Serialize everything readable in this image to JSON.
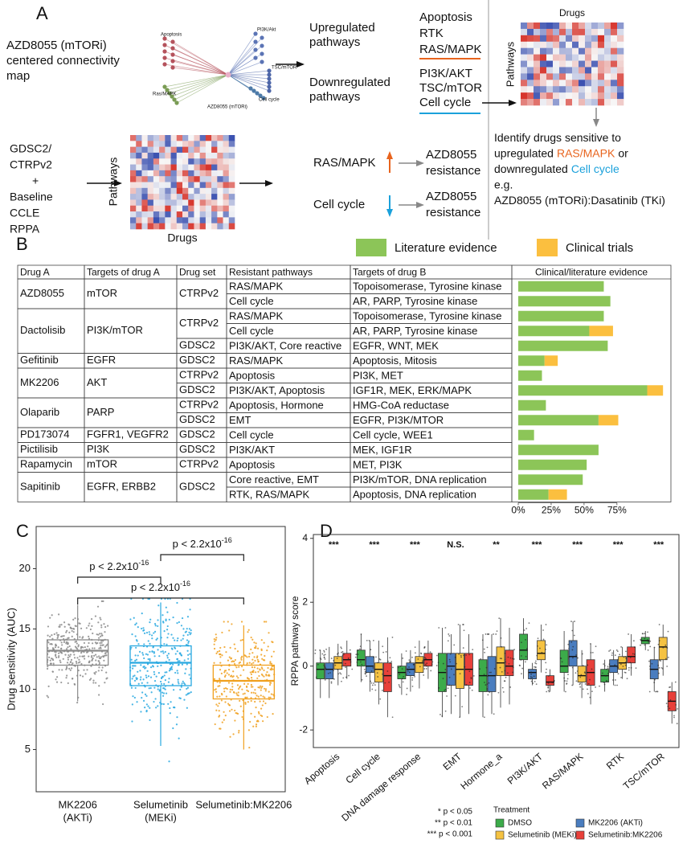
{
  "labels": [
    "A",
    "B",
    "C",
    "D"
  ],
  "panel_a": {
    "map_text": [
      "AZD8055 (mTORi)",
      "centered connectivity",
      "map"
    ],
    "network_labels": [
      "Apoptosis",
      "PI3K/Akt",
      "TSC/mTOR",
      "Ras/MAPK",
      "Cell cycle",
      "AZD8055 (mTORi)"
    ],
    "up_title": [
      "Upregulated",
      "pathways"
    ],
    "up_pathways": [
      "Apoptosis",
      "RTK",
      "RAS/MAPK"
    ],
    "down_title": [
      "Downregulated",
      "pathways"
    ],
    "down_pathways": [
      "PI3K/AKT",
      "TSC/mTOR",
      "Cell cycle"
    ],
    "up_color": "#e8641e",
    "down_color": "#1ba1db",
    "heatmap_top": {
      "x_label": "Drugs",
      "y_label": "Pathways"
    },
    "inputs": [
      "GDSC2/",
      "CTRPv2",
      "+",
      "Baseline",
      "CCLE",
      "RPPA"
    ],
    "heatmap_bottom": {
      "x_label": "Drugs",
      "y_label": "Pathways"
    },
    "outcomes": [
      {
        "pathway": "RAS/MAPK",
        "result": [
          "AZD8055",
          "resistance"
        ]
      },
      {
        "pathway": "Cell cycle",
        "result": [
          "AZD8055",
          "resistance"
        ]
      }
    ],
    "identify": [
      [
        "Identify drugs sensitive to"
      ],
      [
        "upregulated",
        "RAS/MAPK",
        "or"
      ],
      [
        "downregulated",
        "Cell cycle"
      ],
      [
        "e.g."
      ],
      [
        "AZD8055 (mTORi):Dasatinib (TKi)"
      ]
    ]
  },
  "table_b": {
    "headers": [
      "Drug A",
      "Targets of drug A",
      "Drug set",
      "Resistant pathways",
      "Targets of drug B"
    ],
    "drug_color": "#7b4f9e",
    "groups": [
      {
        "drug": "AZD8055",
        "targets": "mTOR",
        "sets": [
          {
            "set": "CTRPv2",
            "rows": [
              {
                "pathway": "RAS/MAPK",
                "color": "#e24a1f",
                "targets_b": "Topoisomerase, Tyrosine kinase"
              },
              {
                "pathway": "Cell cycle",
                "color": "#2aa7de",
                "targets_b": "AR, PARP, Tyrosine kinase"
              }
            ]
          }
        ]
      },
      {
        "drug": "Dactolisib",
        "targets": "PI3K/mTOR",
        "sets": [
          {
            "set": "CTRPv2",
            "rows": [
              {
                "pathway": "RAS/MAPK",
                "color": "#e24a1f",
                "targets_b": "Topoisomerase, Tyrosine kinase"
              },
              {
                "pathway": "Cell cycle",
                "color": "#2aa7de",
                "targets_b": "AR, PARP, Tyrosine kinase"
              }
            ]
          },
          {
            "set": "GDSC2",
            "rows": [
              {
                "pathway": "PI3K/AKT, Core reactive",
                "color": "#2aa7de",
                "targets_b": "EGFR, WNT, MEK"
              }
            ]
          }
        ]
      },
      {
        "drug": "Gefitinib",
        "targets": "EGFR",
        "sets": [
          {
            "set": "GDSC2",
            "rows": [
              {
                "pathway": "RAS/MAPK",
                "color": "#2aa7de",
                "targets_b": "Apoptosis, Mitosis"
              }
            ]
          }
        ]
      },
      {
        "drug": "MK2206",
        "targets": "AKT",
        "sets": [
          {
            "set": "CTRPv2",
            "rows": [
              {
                "pathway": "Apoptosis",
                "color": "#2aa7de",
                "targets_b": "PI3K, MET"
              }
            ]
          },
          {
            "set": "GDSC2",
            "rows": [
              {
                "pathway": "PI3K/AKT, Apoptosis",
                "color": "#2aa7de",
                "targets_b": "IGF1R, MEK, ERK/MAPK"
              }
            ]
          }
        ]
      },
      {
        "drug": "Olaparib",
        "targets": "PARP",
        "sets": [
          {
            "set": "CTRPv2",
            "rows": [
              {
                "pathway": "Apoptosis, Hormone",
                "color": "#2aa7de",
                "targets_b": "HMG-CoA reductase"
              }
            ]
          },
          {
            "set": "GDSC2",
            "rows": [
              {
                "pathway": "EMT",
                "color": "#2aa7de",
                "targets_b": "EGFR, PI3K/MTOR"
              }
            ]
          }
        ]
      },
      {
        "drug": "PD173074",
        "targets": "FGFR1, VEGFR2",
        "sets": [
          {
            "set": "GDSC2",
            "rows": [
              {
                "pathway": "Cell cycle",
                "color": "#e24a1f",
                "targets_b": "Cell cycle, WEE1"
              }
            ]
          }
        ]
      },
      {
        "drug": "Pictilisib",
        "targets": "PI3K",
        "sets": [
          {
            "set": "GDSC2",
            "rows": [
              {
                "pathway": "PI3K/AKT",
                "color": "#2aa7de",
                "targets_b": "MEK, IGF1R"
              }
            ]
          }
        ]
      },
      {
        "drug": "Rapamycin",
        "targets": "mTOR",
        "sets": [
          {
            "set": "CTRPv2",
            "rows": [
              {
                "pathway": "Apoptosis",
                "color": "#2aa7de",
                "targets_b": "MET, PI3K"
              }
            ]
          }
        ]
      },
      {
        "drug": "Sapitinib",
        "targets": "EGFR, ERBB2",
        "sets": [
          {
            "set": "GDSC2",
            "rows": [
              {
                "pathway": "Core reactive, EMT",
                "color": "#e24a1f",
                "targets_b": "PI3K/mTOR, DNA replication"
              },
              {
                "pathway": "RTK, RAS/MAPK",
                "color": "#2aa7de",
                "targets_b": "Apoptosis, DNA replication"
              }
            ]
          }
        ]
      }
    ]
  },
  "chart_data": [
    {
      "type": "bar",
      "orientation": "horizontal",
      "stacked": true,
      "title": "Clinical/literature evidence",
      "series": [
        {
          "name": "Literature evidence",
          "color": "#8cc558",
          "values": [
            65,
            70,
            65,
            54,
            68,
            20,
            18,
            98,
            21,
            61,
            12,
            61,
            52,
            49,
            23
          ]
        },
        {
          "name": "Clinical trials",
          "color": "#fbbf3f",
          "values": [
            0,
            0,
            0,
            18,
            0,
            10,
            0,
            12,
            0,
            15,
            0,
            0,
            0,
            0,
            14
          ]
        }
      ],
      "xlim": [
        0,
        116
      ],
      "xticks": [
        {
          "value": 0,
          "label": "0%"
        },
        {
          "value": 25,
          "label": "25%"
        },
        {
          "value": 50,
          "label": "50%"
        },
        {
          "value": 75,
          "label": "75%"
        }
      ]
    },
    {
      "type": "box",
      "y_label": "Drug sensitivity (AUC)",
      "categories": [
        [
          "MK2206",
          "(AKTi)"
        ],
        [
          "Selumetinib",
          "(MEKi)"
        ],
        [
          "Selumetinib:MK2206"
        ]
      ],
      "colors": [
        "#8a8a8a",
        "#27a8e0",
        "#f0a01e"
      ],
      "boxes": [
        {
          "low": 9,
          "q1": 12,
          "median": 13.2,
          "q3": 14.1,
          "high": 17
        },
        {
          "low": 5.3,
          "q1": 10.3,
          "median": 12.2,
          "q3": 13.6,
          "high": 17.2
        },
        {
          "low": 5,
          "q1": 9.2,
          "median": 10.7,
          "q3": 12,
          "high": 15.3
        }
      ],
      "comparisons": [
        {
          "groups": [
            0,
            1
          ],
          "text": "p < 2.2x10",
          "exponent": "-16"
        },
        {
          "groups": [
            1,
            2
          ],
          "text": "p < 2.2x10",
          "exponent": "-16"
        },
        {
          "groups": [
            0,
            2
          ],
          "text": "p < 2.2x10",
          "exponent": "-16"
        }
      ],
      "ylim": [
        1.5,
        23.5
      ],
      "yticks": [
        5,
        10,
        15,
        20
      ]
    },
    {
      "type": "box",
      "y_label": "RPPA pathway score",
      "categories": [
        "Apoptosis",
        "Cell cycle",
        "DNA damage response",
        "EMT",
        "Hormone_a",
        "PI3K/AKT",
        "RAS/MAPK",
        "RTK",
        "TSC/mTOR"
      ],
      "significance": [
        "***",
        "***",
        "***",
        "N.S.",
        "**",
        "***",
        "***",
        "***",
        "***"
      ],
      "significance_key": [
        "* p < 0.05",
        "** p < 0.01",
        "*** p < 0.001"
      ],
      "legend_title": "Treatment",
      "series": [
        {
          "name": "DMSO",
          "color": "#3cab4a",
          "boxes": [
            {
              "low": -1,
              "q1": -0.4,
              "median": -0.1,
              "q3": 0.1,
              "high": 0.5
            },
            {
              "low": -0.5,
              "q1": 0,
              "median": 0.2,
              "q3": 0.5,
              "high": 1
            },
            {
              "low": -0.9,
              "q1": -0.4,
              "median": -0.2,
              "q3": 0,
              "high": 0.4
            },
            {
              "low": -1.6,
              "q1": -0.8,
              "median": -0.2,
              "q3": 0.4,
              "high": 1.2
            },
            {
              "low": -1.6,
              "q1": -0.8,
              "median": -0.3,
              "q3": 0.2,
              "high": 1
            },
            {
              "low": -0.4,
              "q1": 0.2,
              "median": 0.5,
              "q3": 1,
              "high": 1.5
            },
            {
              "low": -0.8,
              "q1": -0.2,
              "median": 0,
              "q3": 0.5,
              "high": 1.1
            },
            {
              "low": -0.8,
              "q1": -0.5,
              "median": -0.3,
              "q3": -0.1,
              "high": 0.2
            },
            {
              "low": 0.5,
              "q1": 0.7,
              "median": 0.8,
              "q3": 0.9,
              "high": 1.1
            }
          ]
        },
        {
          "name": "MK2206 (AKTi)",
          "color": "#4a7dbf",
          "boxes": [
            {
              "low": -1,
              "q1": -0.4,
              "median": -0.1,
              "q3": 0.1,
              "high": 0.6
            },
            {
              "low": -0.8,
              "q1": -0.2,
              "median": 0,
              "q3": 0.3,
              "high": 0.8
            },
            {
              "low": -0.8,
              "q1": -0.3,
              "median": -0.1,
              "q3": 0.1,
              "high": 0.5
            },
            {
              "low": -1.5,
              "q1": -0.6,
              "median": 0,
              "q3": 0.4,
              "high": 1
            },
            {
              "low": -1.5,
              "q1": -0.8,
              "median": -0.3,
              "q3": 0.3,
              "high": 1
            },
            {
              "low": -0.6,
              "q1": -0.4,
              "median": -0.2,
              "q3": -0.1,
              "high": 0.1
            },
            {
              "low": -0.6,
              "q1": 0,
              "median": 0.3,
              "q3": 0.8,
              "high": 1.4
            },
            {
              "low": -0.6,
              "q1": -0.2,
              "median": 0,
              "q3": 0.2,
              "high": 0.5
            },
            {
              "low": -0.8,
              "q1": -0.4,
              "median": -0.1,
              "q3": 0.2,
              "high": 0.6
            }
          ]
        },
        {
          "name": "Selumetinib (MEKi)",
          "color": "#f5c242",
          "boxes": [
            {
              "low": -0.6,
              "q1": -0.1,
              "median": 0.1,
              "q3": 0.3,
              "high": 0.7
            },
            {
              "low": -1.2,
              "q1": -0.5,
              "median": -0.1,
              "q3": 0.1,
              "high": 0.8
            },
            {
              "low": -0.7,
              "q1": -0.2,
              "median": 0.1,
              "q3": 0.3,
              "high": 0.8
            },
            {
              "low": -1.6,
              "q1": -0.7,
              "median": -0.1,
              "q3": 0.4,
              "high": 1.3
            },
            {
              "low": -1.3,
              "q1": -0.3,
              "median": 0.1,
              "q3": 0.6,
              "high": 1.5
            },
            {
              "low": -0.2,
              "q1": 0.2,
              "median": 0.4,
              "q3": 0.8,
              "high": 1.3
            },
            {
              "low": -1,
              "q1": -0.5,
              "median": -0.3,
              "q3": 0,
              "high": 0.5
            },
            {
              "low": -0.4,
              "q1": -0.1,
              "median": 0.1,
              "q3": 0.3,
              "high": 0.6
            },
            {
              "low": -0.3,
              "q1": 0.2,
              "median": 0.6,
              "q3": 0.9,
              "high": 1.3
            }
          ]
        },
        {
          "name": "Selumetinib:MK2206",
          "color": "#e8403a",
          "boxes": [
            {
              "low": -0.4,
              "q1": 0,
              "median": 0.2,
              "q3": 0.4,
              "high": 0.8
            },
            {
              "low": -1.6,
              "q1": -0.8,
              "median": -0.3,
              "q3": 0.1,
              "high": 0.9
            },
            {
              "low": -0.4,
              "q1": 0,
              "median": 0.2,
              "q3": 0.4,
              "high": 0.8
            },
            {
              "low": -1.5,
              "q1": -0.6,
              "median": -0.1,
              "q3": 0.4,
              "high": 1
            },
            {
              "low": -1.2,
              "q1": -0.3,
              "median": 0,
              "q3": 0.5,
              "high": 1.2
            },
            {
              "low": -0.8,
              "q1": -0.6,
              "median": -0.5,
              "q3": -0.3,
              "high": -0.1
            },
            {
              "low": -1.2,
              "q1": -0.6,
              "median": -0.2,
              "q3": 0.2,
              "high": 0.7
            },
            {
              "low": -0.3,
              "q1": 0.1,
              "median": 0.3,
              "q3": 0.6,
              "high": 1
            },
            {
              "low": -1.8,
              "q1": -1.4,
              "median": -1.1,
              "q3": -0.8,
              "high": -0.5
            }
          ]
        }
      ],
      "ylim": [
        -2.55,
        4.12
      ],
      "yticks": [
        -2,
        0,
        2,
        4
      ]
    }
  ]
}
